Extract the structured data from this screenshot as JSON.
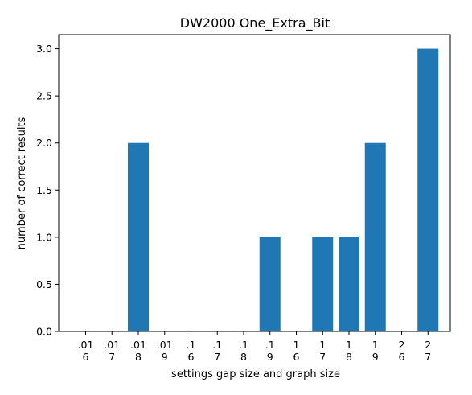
{
  "chart_data": {
    "type": "bar",
    "title": "DW2000 One_Extra_Bit",
    "xlabel": "settings gap size and graph size",
    "ylabel": "number of correct results",
    "categories": [
      [
        ".01",
        "6"
      ],
      [
        ".01",
        "7"
      ],
      [
        ".01",
        "8"
      ],
      [
        ".01",
        "9"
      ],
      [
        ".1",
        "6"
      ],
      [
        ".1",
        "7"
      ],
      [
        ".1",
        "8"
      ],
      [
        ".1",
        "9"
      ],
      [
        "1",
        "6"
      ],
      [
        "1",
        "7"
      ],
      [
        "1",
        "8"
      ],
      [
        "1",
        "9"
      ],
      [
        "2",
        "6"
      ],
      [
        "2",
        "7"
      ]
    ],
    "values": [
      0,
      0,
      2,
      0,
      0,
      0,
      0,
      1,
      0,
      1,
      1,
      2,
      0,
      3
    ],
    "ylim": [
      0,
      3.15
    ],
    "yticks": [
      "0.0",
      "0.5",
      "1.0",
      "1.5",
      "2.0",
      "2.5",
      "3.0"
    ],
    "bar_color": "#1f77b4",
    "grid": false
  }
}
